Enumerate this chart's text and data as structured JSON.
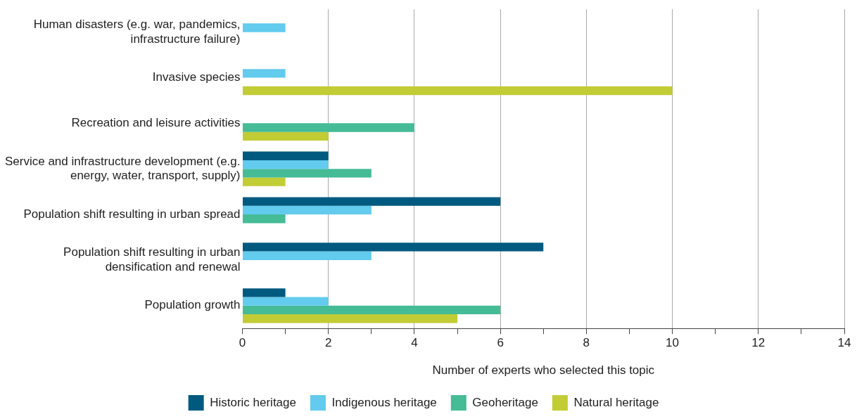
{
  "chart_data": {
    "type": "bar",
    "orientation": "horizontal",
    "xlabel": "Number of experts who selected this topic",
    "categories": [
      "Human disasters (e.g. war, pandemics, infrastructure failure)",
      "Invasive species",
      "Recreation and leisure activities",
      "Service and infrastructure development (e.g. energy, water, transport, supply)",
      "Population shift resulting in urban spread",
      "Population shift resulting in urban densification and renewal",
      "Population growth"
    ],
    "series": [
      {
        "name": "Historic heritage",
        "color": "#005a7f",
        "values": [
          null,
          null,
          null,
          2,
          6,
          7,
          1
        ]
      },
      {
        "name": "Indigenous heritage",
        "color": "#62cbee",
        "values": [
          1,
          1,
          null,
          2,
          3,
          3,
          2
        ]
      },
      {
        "name": "Geoheritage",
        "color": "#45bb96",
        "values": [
          null,
          null,
          4,
          3,
          1,
          null,
          6
        ]
      },
      {
        "name": "Natural heritage",
        "color": "#c2cc35",
        "values": [
          null,
          10,
          2,
          1,
          null,
          null,
          5
        ]
      }
    ],
    "xlim": [
      0,
      14
    ],
    "xticks": [
      0,
      {
        "value": 1,
        "label": null
      },
      2,
      {
        "value": 3,
        "label": null
      },
      4,
      {
        "value": 5,
        "label": null
      },
      6,
      {
        "value": 7,
        "label": null
      },
      8,
      {
        "value": 9,
        "label": null
      },
      10,
      {
        "value": 11,
        "label": null
      },
      12,
      {
        "value": 13,
        "label": null
      },
      14
    ],
    "grid": "x",
    "legend": "bottom"
  }
}
